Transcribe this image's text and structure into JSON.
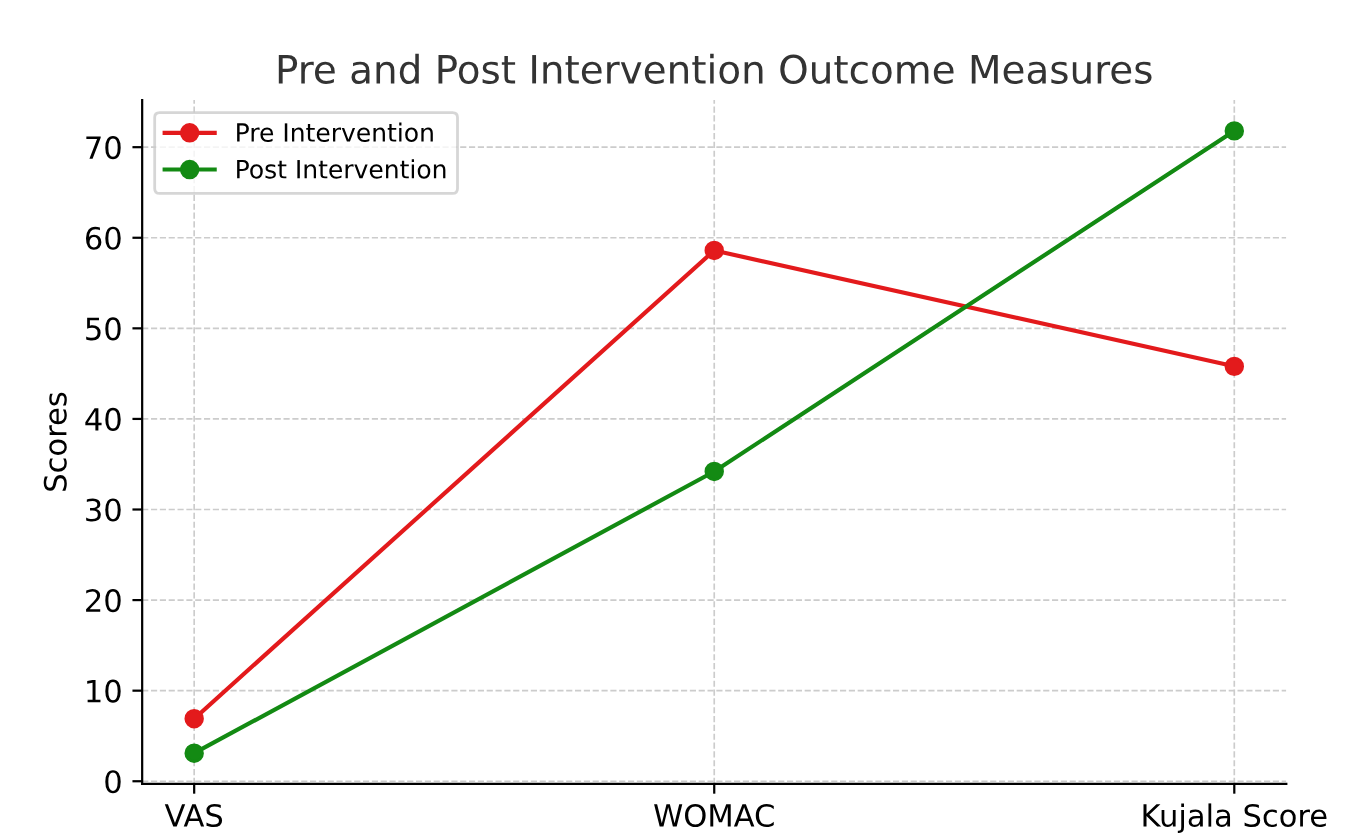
{
  "chart_data": {
    "type": "line",
    "title": "Pre and Post Intervention Outcome Measures",
    "ylabel": "Scores",
    "categories": [
      "VAS",
      "WOMAC",
      "Kujala Score"
    ],
    "series": [
      {
        "name": "Pre Intervention",
        "color": "#e31a1c",
        "values": [
          6.9,
          58.6,
          45.8
        ]
      },
      {
        "name": "Post Intervention",
        "color": "#138a13",
        "values": [
          3.1,
          34.2,
          71.8
        ]
      }
    ],
    "ylim": [
      -0.3,
      75.2
    ],
    "yticks": [
      0,
      10,
      20,
      30,
      40,
      50,
      60,
      70
    ],
    "grid": true,
    "legend": "top left",
    "marker": "circle",
    "line_style": "solid"
  }
}
